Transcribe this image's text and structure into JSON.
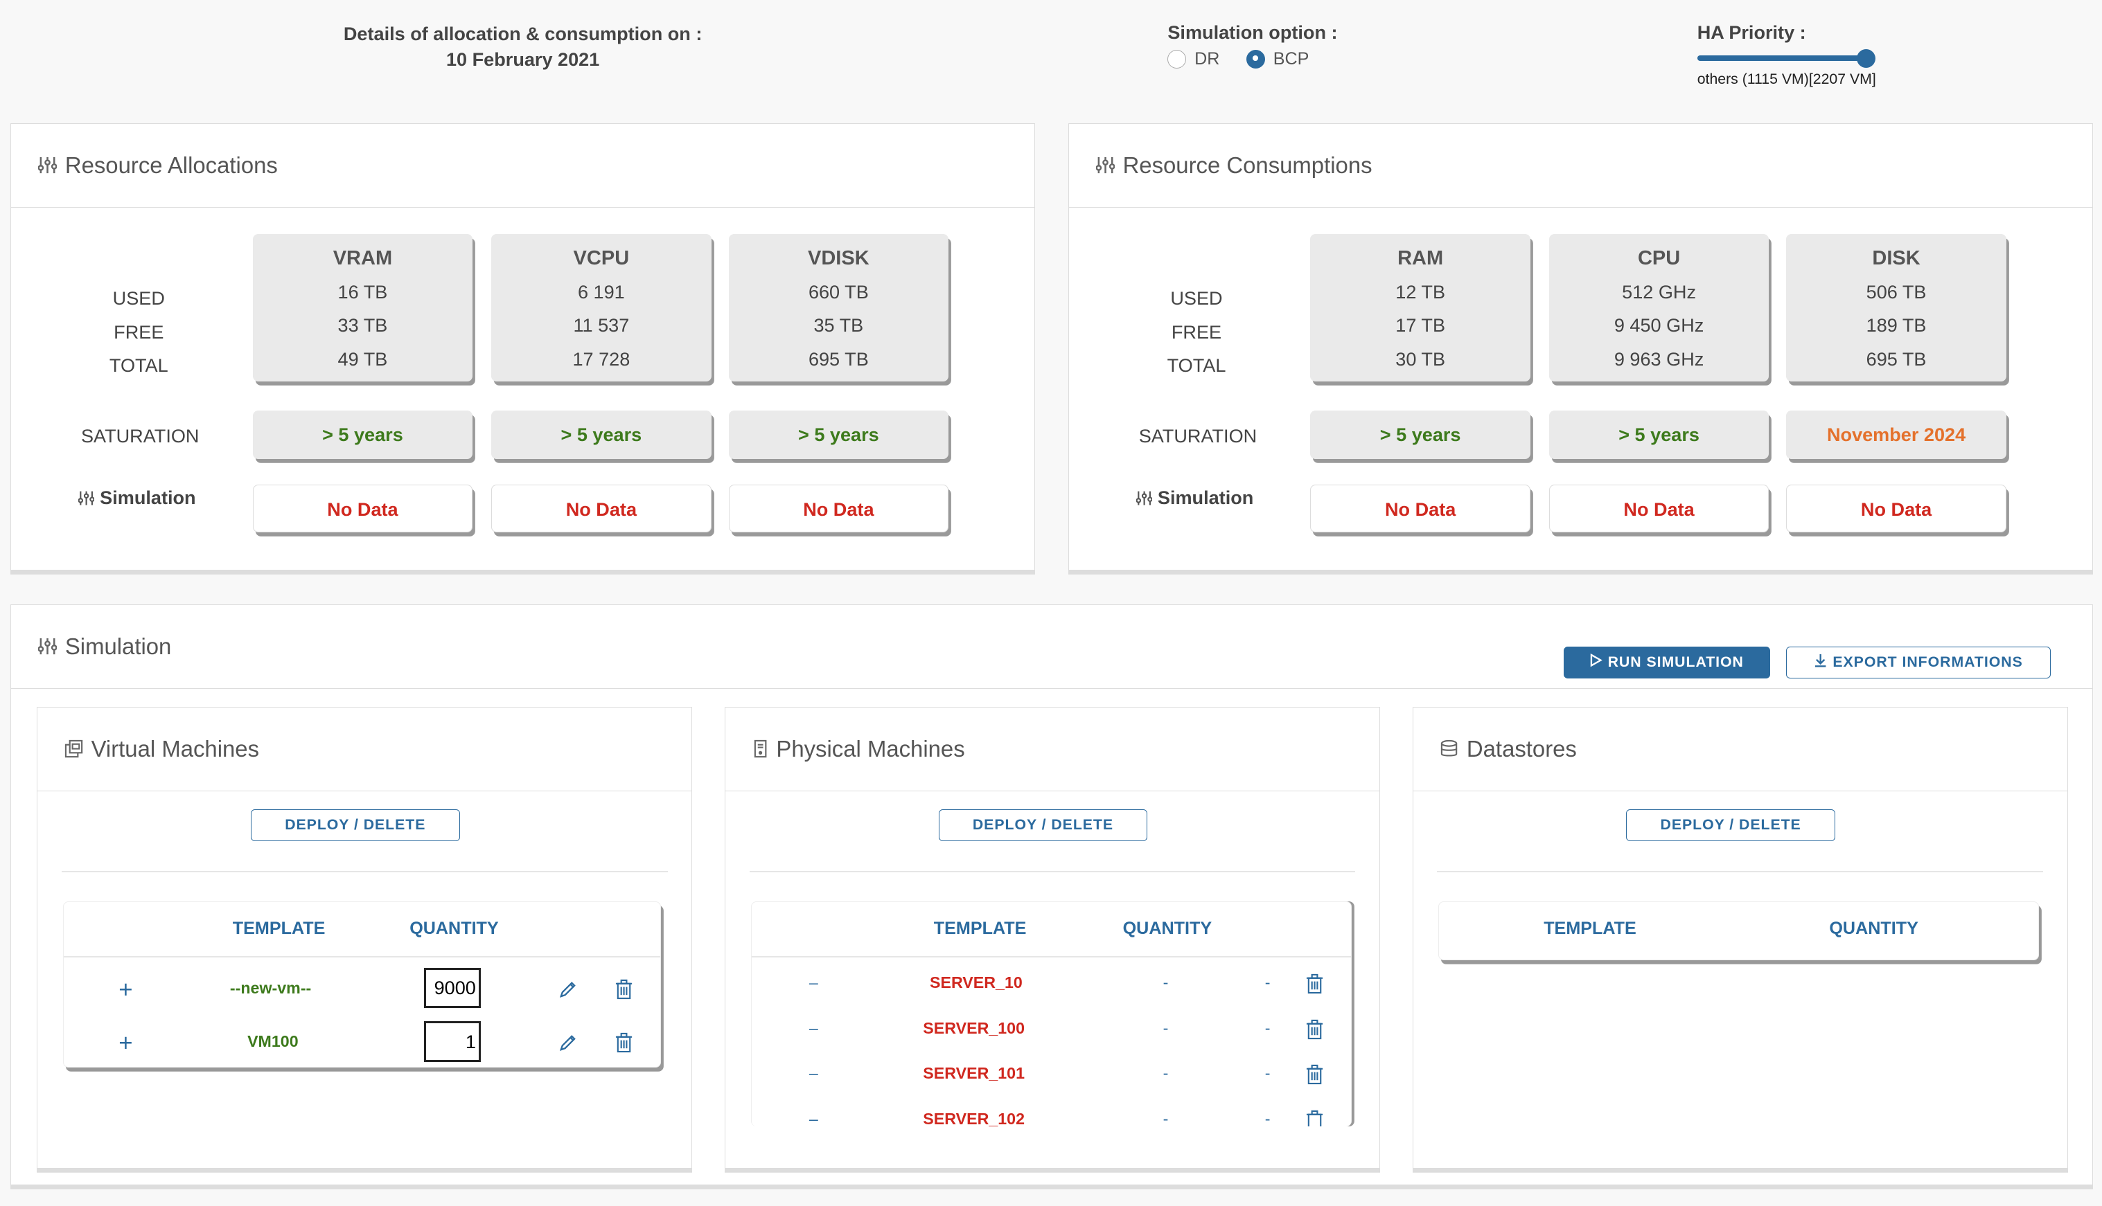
{
  "header": {
    "details_line1": "Details of allocation & consumption on :",
    "details_line2": "10 February 2021",
    "sim_option_title": "Simulation option :",
    "sim_options": [
      {
        "label": "DR",
        "selected": false
      },
      {
        "label": "BCP",
        "selected": true
      }
    ],
    "ha_title": "HA Priority :",
    "ha_level_fraction": 1.0,
    "ha_caption": "others (1115 VM)[2207 VM]"
  },
  "row_labels": {
    "used": "USED",
    "free": "FREE",
    "total": "TOTAL",
    "saturation": "SATURATION",
    "simulation": "Simulation"
  },
  "allocations": {
    "title": "Resource Allocations",
    "metrics": [
      {
        "name": "VRAM",
        "used": "16 TB",
        "free": "33 TB",
        "total": "49 TB",
        "saturation": "> 5 years",
        "simulation": "No Data"
      },
      {
        "name": "VCPU",
        "used": "6 191",
        "free": "11 537",
        "total": "17 728",
        "saturation": "> 5 years",
        "simulation": "No Data"
      },
      {
        "name": "VDISK",
        "used": "660 TB",
        "free": "35 TB",
        "total": "695 TB",
        "saturation": "> 5 years",
        "simulation": "No Data"
      }
    ]
  },
  "consumptions": {
    "title": "Resource Consumptions",
    "metrics": [
      {
        "name": "RAM",
        "used": "12 TB",
        "free": "17 TB",
        "total": "30 TB",
        "saturation": "> 5 years",
        "simulation": "No Data"
      },
      {
        "name": "CPU",
        "used": "512 GHz",
        "free": "9 450 GHz",
        "total": "9 963 GHz",
        "saturation": "> 5 years",
        "simulation": "No Data"
      },
      {
        "name": "DISK",
        "used": "506 TB",
        "free": "189 TB",
        "total": "695 TB",
        "saturation": "November 2024",
        "simulation": "No Data"
      }
    ]
  },
  "simulation": {
    "title": "Simulation",
    "run_label": "RUN SIMULATION",
    "export_label": "EXPORT INFORMATIONS",
    "deploy_label": "DEPLOY / DELETE",
    "col_template": "TEMPLATE",
    "col_quantity": "QUANTITY",
    "vm": {
      "title": "Virtual Machines",
      "rows": [
        {
          "action": "+",
          "template": "--new-vm--",
          "quantity": "9000"
        },
        {
          "action": "+",
          "template": "VM100",
          "quantity": "1"
        }
      ]
    },
    "pm": {
      "title": "Physical Machines",
      "rows": [
        {
          "action": "–",
          "template": "SERVER_10",
          "quantity": "-",
          "extra": "-"
        },
        {
          "action": "–",
          "template": "SERVER_100",
          "quantity": "-",
          "extra": "-"
        },
        {
          "action": "–",
          "template": "SERVER_101",
          "quantity": "-",
          "extra": "-"
        },
        {
          "action": "–",
          "template": "SERVER_102",
          "quantity": "-",
          "extra": "-"
        }
      ]
    },
    "ds": {
      "title": "Datastores"
    }
  },
  "colors": {
    "accent": "#2b6a9e",
    "green": "#3d7a1c",
    "red": "#d0281f",
    "orange": "#e4712c"
  }
}
